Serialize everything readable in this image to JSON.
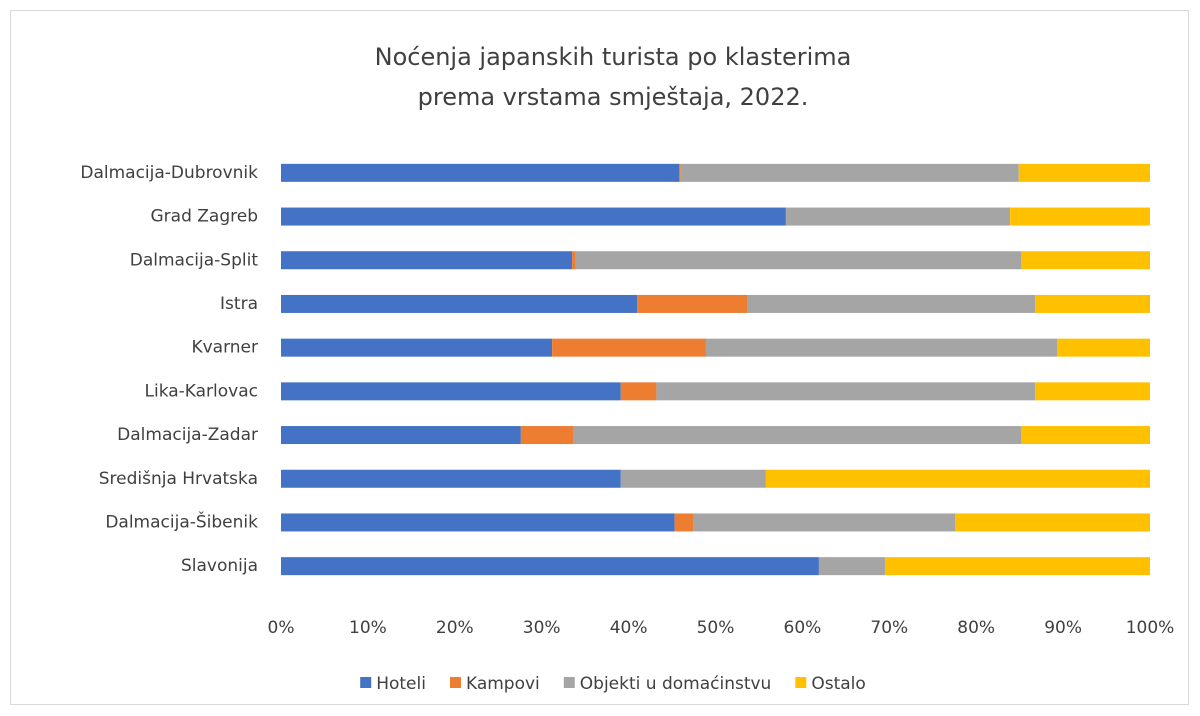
{
  "chart_data": {
    "type": "stacked-barh",
    "title": [
      "Noćenja japanskih turista po klasterima",
      "prema vrstama smještaja, 2022."
    ],
    "categories": [
      "Dalmacija-Dubrovnik",
      "Grad Zagreb",
      "Dalmacija-Split",
      "Istra",
      "Kvarner",
      "Lika-Karlovac",
      "Dalmacija-Zadar",
      "Središnja Hrvatska",
      "Dalmacija-Šibenik",
      "Slavonija"
    ],
    "series": [
      {
        "name": "Hoteli",
        "color": "#4472c4",
        "values": [
          45.8,
          58.1,
          33.5,
          41.0,
          31.2,
          39.1,
          27.6,
          39.1,
          45.3,
          61.9
        ]
      },
      {
        "name": "Kampovi",
        "color": "#ed7d31",
        "values": [
          0.2,
          0,
          0.4,
          12.7,
          17.7,
          4.1,
          6.0,
          0,
          2.2,
          0
        ]
      },
      {
        "name": "Objekti u domaćinstvu",
        "color": "#a5a5a5",
        "values": [
          38.9,
          25.8,
          51.3,
          33.1,
          40.4,
          43.6,
          51.6,
          16.7,
          30.1,
          7.6
        ]
      },
      {
        "name": "Ostalo",
        "color": "#ffc000",
        "values": [
          15.1,
          16.1,
          14.8,
          13.2,
          10.7,
          13.2,
          14.8,
          44.2,
          22.4,
          30.5
        ]
      }
    ],
    "xlim": [
      0,
      100
    ],
    "xticks": [
      {
        "value": 0,
        "label": "0%"
      },
      {
        "value": 10,
        "label": "10%"
      },
      {
        "value": 20,
        "label": "20%"
      },
      {
        "value": 30,
        "label": "30%"
      },
      {
        "value": 40,
        "label": "40%"
      },
      {
        "value": 50,
        "label": "50%"
      },
      {
        "value": 60,
        "label": "60%"
      },
      {
        "value": 70,
        "label": "70%"
      },
      {
        "value": 80,
        "label": "80%"
      },
      {
        "value": 90,
        "label": "90%"
      },
      {
        "value": 100,
        "label": "100%"
      }
    ],
    "grid": false,
    "legend": "bottom"
  }
}
